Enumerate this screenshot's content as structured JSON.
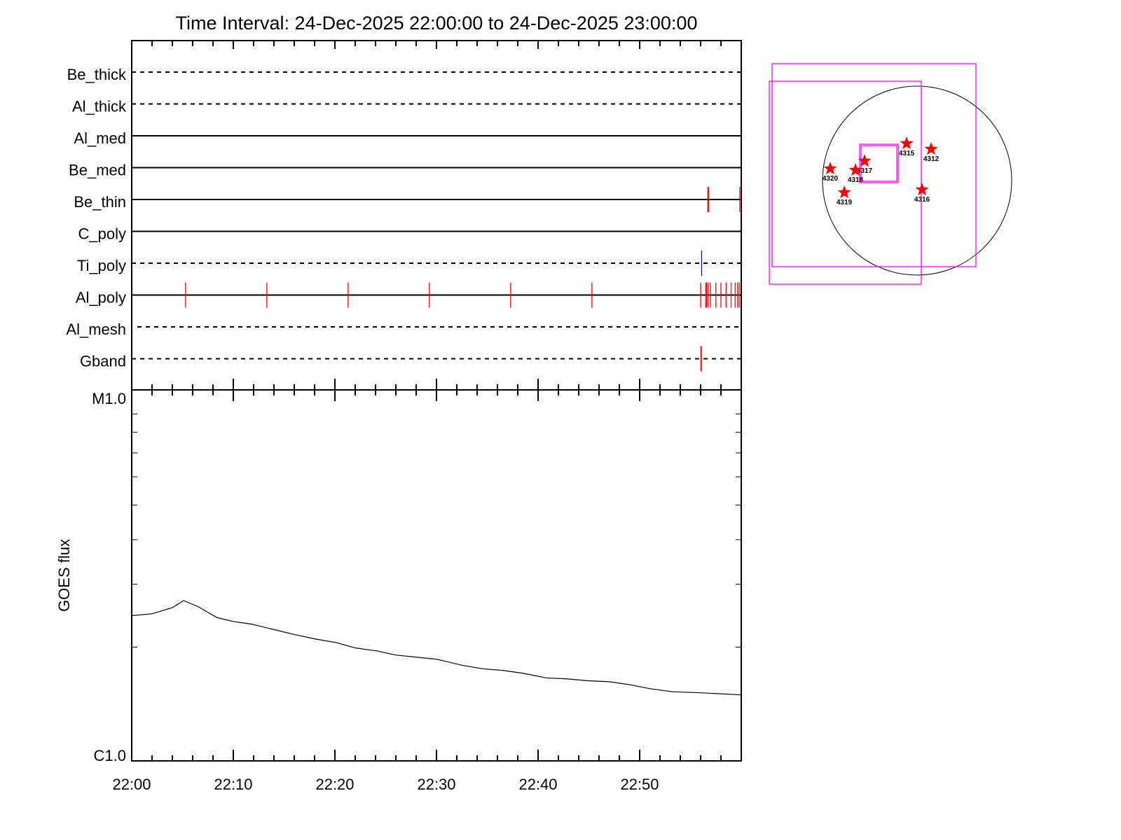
{
  "chart_data": [
    {
      "type": "line",
      "title": "Time Interval: 24-Dec-2025 22:00:00 to 24-Dec-2025 23:00:00",
      "panel": "detector-events",
      "x_unit": "minutes after 22:00",
      "xlim": [
        0,
        60
      ],
      "rows": [
        {
          "name": "Be_thick",
          "line": "dashed",
          "events": []
        },
        {
          "name": "Al_thick",
          "line": "dashed",
          "events": []
        },
        {
          "name": "Al_med",
          "line": "solid",
          "events": []
        },
        {
          "name": "Be_med",
          "line": "solid",
          "events": []
        },
        {
          "name": "Be_thin",
          "line": "solid",
          "events": [
            56.7,
            56.8,
            59.85
          ],
          "event_color": "#ff0000"
        },
        {
          "name": "C_poly",
          "line": "solid",
          "events": []
        },
        {
          "name": "Ti_poly",
          "line": "dashed",
          "events": [
            56.1
          ],
          "event_color": "#0000ff"
        },
        {
          "name": "Al_poly",
          "line": "solid",
          "events": [
            5.3,
            13.3,
            21.3,
            29.3,
            37.3,
            45.3,
            56.0,
            56.5,
            56.6,
            56.75,
            56.95,
            57.5,
            58.0,
            58.5,
            59.0,
            59.4,
            59.65,
            59.8
          ],
          "event_color": "#ff0000"
        },
        {
          "name": "Al_mesh",
          "line": "dashed",
          "events": []
        },
        {
          "name": "Gband",
          "line": "dashed",
          "events": [
            56.05
          ],
          "event_color": "#ff0000"
        }
      ]
    },
    {
      "type": "line",
      "panel": "goes-flux",
      "ylabel": "GOES flux",
      "yscale": "log",
      "ylim": [
        1e-06,
        1e-05
      ],
      "ytick_labels": [
        "C1.0",
        "M1.0"
      ],
      "xtick_labels": [
        "22:00",
        "22:10",
        "22:20",
        "22:30",
        "22:40",
        "22:50"
      ],
      "xlim": [
        0,
        60
      ],
      "x": [
        0,
        2,
        4,
        5.1,
        6.5,
        8.4,
        10,
        11.8,
        14,
        16,
        18,
        20.1,
        22,
        24.2,
        26,
        28.4,
        30,
        32.5,
        34.5,
        36.6,
        38.5,
        40.8,
        42.8,
        44.9,
        47,
        49,
        51,
        53.2,
        56,
        60
      ],
      "y": [
        2.45e-06,
        2.48e-06,
        2.58e-06,
        2.7e-06,
        2.6e-06,
        2.42e-06,
        2.36e-06,
        2.32e-06,
        2.24e-06,
        2.17e-06,
        2.11e-06,
        2.06e-06,
        1.99e-06,
        1.95e-06,
        1.9e-06,
        1.87e-06,
        1.85e-06,
        1.78e-06,
        1.74e-06,
        1.72e-06,
        1.69e-06,
        1.64e-06,
        1.63e-06,
        1.61e-06,
        1.6e-06,
        1.57e-06,
        1.53e-06,
        1.5e-06,
        1.49e-06,
        1.47e-06
      ],
      "line_color": "#000000"
    }
  ],
  "sun_map": {
    "box_color": "#ff00ff",
    "star_color": "#ff0000",
    "regions": [
      "4315",
      "4312",
      "4317",
      "4318",
      "4320",
      "4319",
      "4316"
    ]
  }
}
